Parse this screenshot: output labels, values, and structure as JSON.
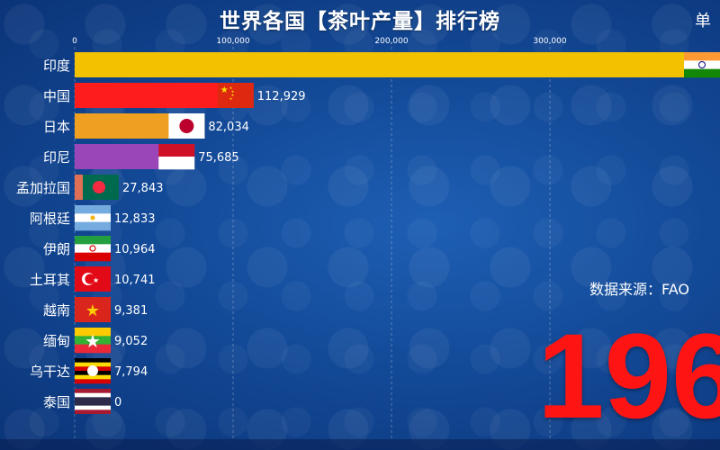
{
  "title": "世界各国【茶叶产量】排行榜",
  "unit_label": "单",
  "source": "数据来源：FAO",
  "year_display": "196",
  "chart_data": {
    "type": "bar",
    "orientation": "horizontal",
    "title": "世界各国【茶叶产量】排行榜",
    "x_ticks": [
      0,
      100000,
      200000,
      300000
    ],
    "x_tick_labels": [
      "0",
      "100,000",
      "200,000",
      "300,000"
    ],
    "xlim": [
      0,
      390000
    ],
    "categories": [
      "印度",
      "中国",
      "日本",
      "印尼",
      "孟加拉国",
      "阿根廷",
      "伊朗",
      "土耳其",
      "越南",
      "缅甸",
      "乌干达",
      "泰国"
    ],
    "values": [
      420000,
      112929,
      82034,
      75685,
      27843,
      12833,
      10964,
      10741,
      9381,
      9052,
      7794,
      0
    ],
    "value_labels": [
      "",
      "112,929",
      "82,034",
      "75,685",
      "27,843",
      "12,833",
      "10,964",
      "10,741",
      "9,381",
      "9,052",
      "7,794",
      "0"
    ],
    "colors": [
      "#f2c200",
      "#ff1c1c",
      "#f0a020",
      "#9b46b8",
      "#e07055",
      "#33c2a0",
      "#8cd060",
      "#ff8a80",
      "#b9b9b9",
      "#e83ab0",
      "#4a5fb6",
      "#d9c79a"
    ],
    "flags": [
      "india-flag-icon",
      "china-flag-icon",
      "japan-flag-icon",
      "indonesia-flag-icon",
      "bangladesh-flag-icon",
      "argentina-flag-icon",
      "iran-flag-icon",
      "turkey-flag-icon",
      "vietnam-flag-icon",
      "myanmar-flag-icon",
      "uganda-flag-icon",
      "thailand-flag-icon"
    ],
    "grid": true
  }
}
